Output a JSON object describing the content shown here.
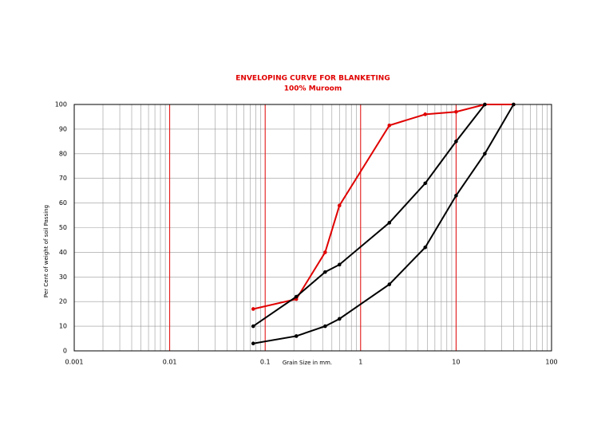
{
  "chart_data": {
    "type": "line",
    "title": "ENVELOPING CURVE FOR BLANKETING",
    "subtitle": "100% Muroom",
    "x_label": "Grain Size in mm.",
    "y_label": "Per Cent of weight of soil Passing",
    "x_scale": "log",
    "xlim": [
      0.001,
      100
    ],
    "xticks": [
      0.001,
      0.01,
      0.1,
      1,
      10,
      100
    ],
    "ylim": [
      0,
      100
    ],
    "yticks": [
      0,
      10,
      20,
      30,
      40,
      50,
      60,
      70,
      80,
      90,
      100
    ],
    "grid": true,
    "grid_color": "#999999",
    "major_grid_color": "#e00000",
    "series": [
      {
        "color": "#e00000",
        "x": [
          0.075,
          0.212,
          0.425,
          0.6,
          2,
          4.75,
          10,
          20,
          40
        ],
        "values": [
          17,
          21,
          40,
          59,
          91.5,
          96,
          97,
          100,
          100
        ]
      },
      {
        "color": "#000000",
        "x": [
          0.075,
          0.212,
          0.425,
          0.6,
          2,
          4.75,
          10,
          20
        ],
        "values": [
          10,
          22,
          32,
          35,
          52,
          68,
          85,
          100
        ]
      },
      {
        "color": "#000000",
        "x": [
          0.075,
          0.212,
          0.425,
          0.6,
          2,
          4.75,
          10,
          20,
          40
        ],
        "values": [
          3,
          6,
          10,
          13,
          27,
          42,
          63,
          80,
          100
        ]
      }
    ]
  }
}
